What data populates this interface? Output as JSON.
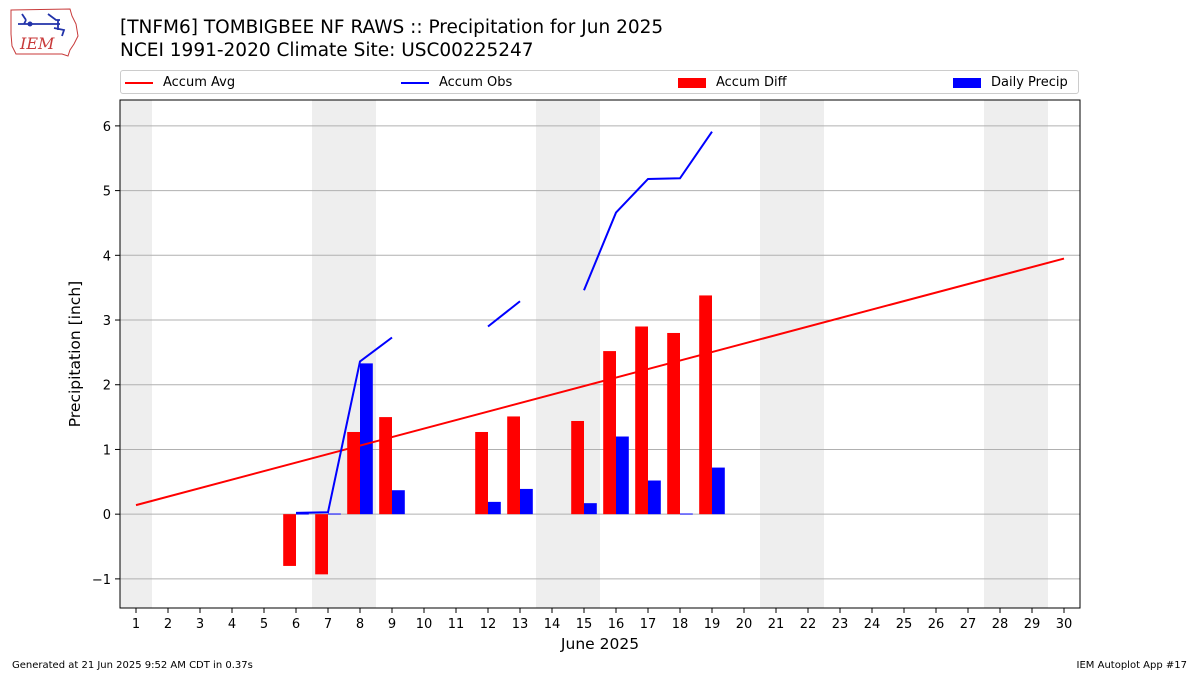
{
  "header": {
    "logo_text": "IEM",
    "title_line1": "[TNFM6] TOMBIGBEE NF RAWS :: Precipitation for Jun 2025",
    "title_line2": "NCEI 1991-2020 Climate Site: USC00225247"
  },
  "footer": {
    "generated": "Generated at 21 Jun 2025 9:52 AM CDT in 0.37s",
    "app": "IEM Autoplot App #17"
  },
  "colors": {
    "avg": "#ff0000",
    "obs": "#0000ff",
    "diff_bar": "#ff0000",
    "daily_bar": "#0000ff",
    "weekend_band": "#eeeeee",
    "grid": "#b0b0b0"
  },
  "chart_data": {
    "type": "bar",
    "xlabel": "June 2025",
    "ylabel": "Precipitation [inch]",
    "xlim": [
      0.5,
      30.5
    ],
    "ylim": [
      -1.45,
      6.4
    ],
    "y_ticks": [
      -1,
      0,
      1,
      2,
      3,
      4,
      5,
      6
    ],
    "y_tick_labels": [
      "−1",
      "0",
      "1",
      "2",
      "3",
      "4",
      "5",
      "6"
    ],
    "x_ticks": [
      1,
      2,
      3,
      4,
      5,
      6,
      7,
      8,
      9,
      10,
      11,
      12,
      13,
      14,
      15,
      16,
      17,
      18,
      19,
      20,
      21,
      22,
      23,
      24,
      25,
      26,
      27,
      28,
      29,
      30
    ],
    "grid": "horizontal",
    "legend_position": "top",
    "weekend_days": [
      1,
      7,
      8,
      14,
      15,
      21,
      22,
      28,
      29
    ],
    "series": [
      {
        "name": "Accum Avg",
        "type": "line",
        "x": [
          1,
          30
        ],
        "values": [
          0.14,
          3.95
        ]
      },
      {
        "name": "Accum Obs",
        "type": "line",
        "segments": [
          {
            "x": [
              6,
              7,
              8,
              9
            ],
            "values": [
              0.02,
              0.03,
              2.36,
              2.73
            ]
          },
          {
            "x": [
              12,
              13
            ],
            "values": [
              2.9,
              3.29
            ]
          },
          {
            "x": [
              15,
              16,
              17,
              18,
              19
            ],
            "values": [
              3.46,
              4.66,
              5.18,
              5.19,
              5.91
            ]
          }
        ]
      },
      {
        "name": "Accum Diff",
        "type": "bar",
        "x": [
          6,
          7,
          8,
          9,
          12,
          13,
          15,
          16,
          17,
          18,
          19
        ],
        "values": [
          -0.8,
          -0.93,
          1.27,
          1.5,
          1.27,
          1.51,
          1.44,
          2.52,
          2.9,
          2.8,
          3.38
        ]
      },
      {
        "name": "Daily Precip",
        "type": "bar",
        "x": [
          6,
          7,
          8,
          9,
          12,
          13,
          15,
          16,
          17,
          18,
          19
        ],
        "values": [
          0.01,
          0.01,
          2.33,
          0.37,
          0.19,
          0.39,
          0.17,
          1.2,
          0.52,
          0.01,
          0.72
        ]
      }
    ]
  }
}
